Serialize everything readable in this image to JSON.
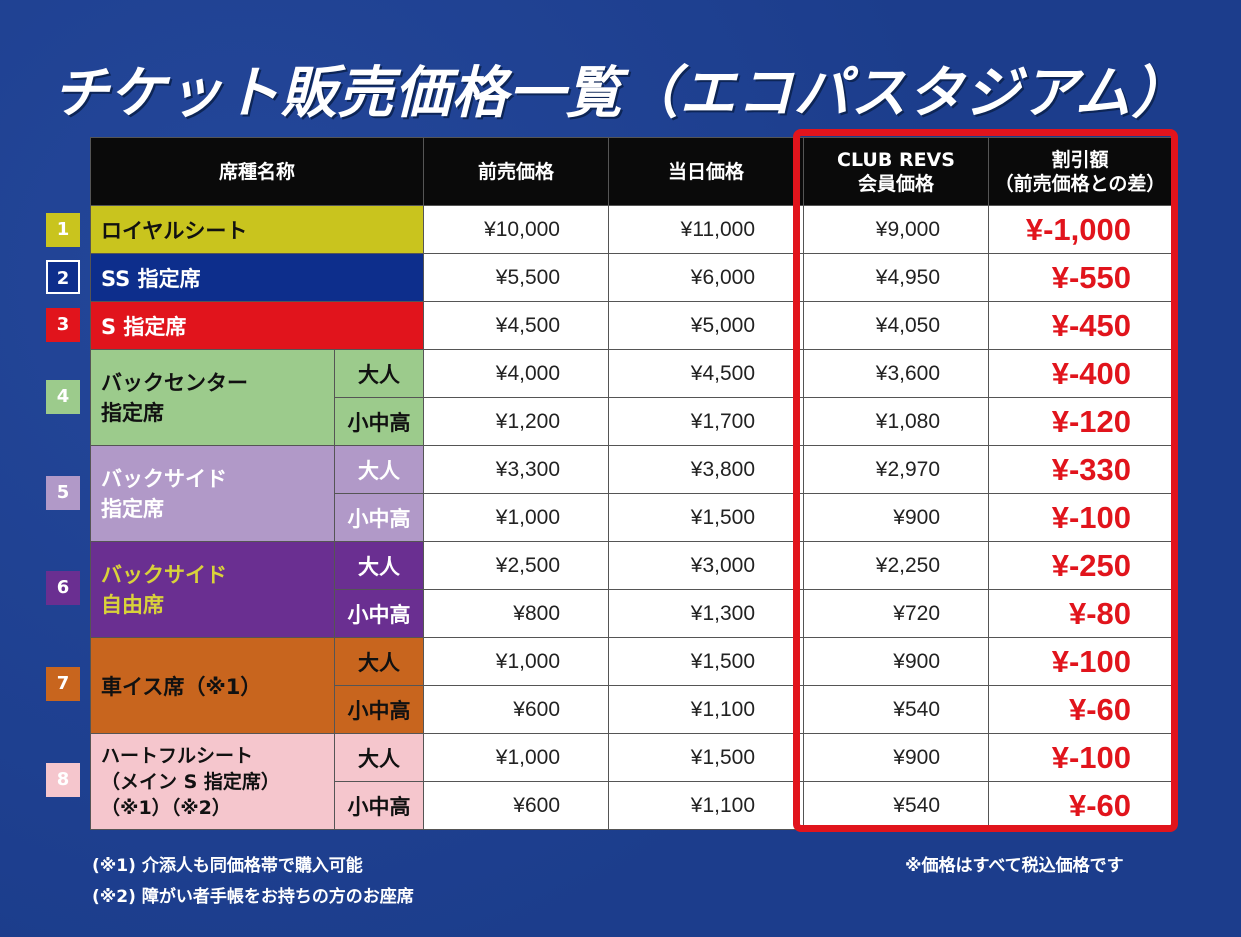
{
  "title": "チケット販売価格一覧（エコパスタジアム）",
  "headers": {
    "seat": "席種名称",
    "advance": "前売価格",
    "sameday": "当日価格",
    "member_l1": "CLUB REVS",
    "member_l2": "会員価格",
    "discount_l1": "割引額",
    "discount_l2": "（前売価格との差）"
  },
  "ages": {
    "adult": "大人",
    "child": "小中高"
  },
  "colors": {
    "royal": "#c9c41e",
    "ss": "#0d2e8c",
    "s": "#e1141c",
    "backcenter": "#9ccb8c",
    "backside": "#b199c8",
    "backfree": "#6a2f91",
    "wheelchair": "#c8651e",
    "heartful": "#f5c6cd",
    "accent_red": "#e1141c"
  },
  "seats": [
    {
      "num": "1",
      "name": "ロイヤルシート",
      "rows": [
        {
          "advance": "¥10,000",
          "sameday": "¥11,000",
          "member": "¥9,000",
          "discount": "¥-1,000"
        }
      ]
    },
    {
      "num": "2",
      "name": "SS 指定席",
      "rows": [
        {
          "advance": "¥5,500",
          "sameday": "¥6,000",
          "member": "¥4,950",
          "discount": "¥-550"
        }
      ]
    },
    {
      "num": "3",
      "name": "S 指定席",
      "rows": [
        {
          "advance": "¥4,500",
          "sameday": "¥5,000",
          "member": "¥4,050",
          "discount": "¥-450"
        }
      ]
    },
    {
      "num": "4",
      "name_l1": "バックセンター",
      "name_l2": "指定席",
      "rows": [
        {
          "advance": "¥4,000",
          "sameday": "¥4,500",
          "member": "¥3,600",
          "discount": "¥-400"
        },
        {
          "advance": "¥1,200",
          "sameday": "¥1,700",
          "member": "¥1,080",
          "discount": "¥-120"
        }
      ]
    },
    {
      "num": "5",
      "name_l1": "バックサイド",
      "name_l2": "指定席",
      "rows": [
        {
          "advance": "¥3,300",
          "sameday": "¥3,800",
          "member": "¥2,970",
          "discount": "¥-330"
        },
        {
          "advance": "¥1,000",
          "sameday": "¥1,500",
          "member": "¥900",
          "discount": "¥-100"
        }
      ]
    },
    {
      "num": "6",
      "name_l1": "バックサイド",
      "name_l2": "自由席",
      "rows": [
        {
          "advance": "¥2,500",
          "sameday": "¥3,000",
          "member": "¥2,250",
          "discount": "¥-250"
        },
        {
          "advance": "¥800",
          "sameday": "¥1,300",
          "member": "¥720",
          "discount": "¥-80"
        }
      ]
    },
    {
      "num": "7",
      "name": "車イス席（※1）",
      "rows": [
        {
          "advance": "¥1,000",
          "sameday": "¥1,500",
          "member": "¥900",
          "discount": "¥-100"
        },
        {
          "advance": "¥600",
          "sameday": "¥1,100",
          "member": "¥540",
          "discount": "¥-60"
        }
      ]
    },
    {
      "num": "8",
      "name_l1": "ハートフルシート",
      "name_l2": "（メイン S 指定席）",
      "name_l3": "（※1）（※2）",
      "rows": [
        {
          "advance": "¥1,000",
          "sameday": "¥1,500",
          "member": "¥900",
          "discount": "¥-100"
        },
        {
          "advance": "¥600",
          "sameday": "¥1,100",
          "member": "¥540",
          "discount": "¥-60"
        }
      ]
    }
  ],
  "notes": {
    "n1": "(※1) 介添人も同価格帯で購入可能",
    "n2": "(※2) 障がい者手帳をお持ちの方のお座席",
    "tax": "※価格はすべて税込価格です"
  }
}
